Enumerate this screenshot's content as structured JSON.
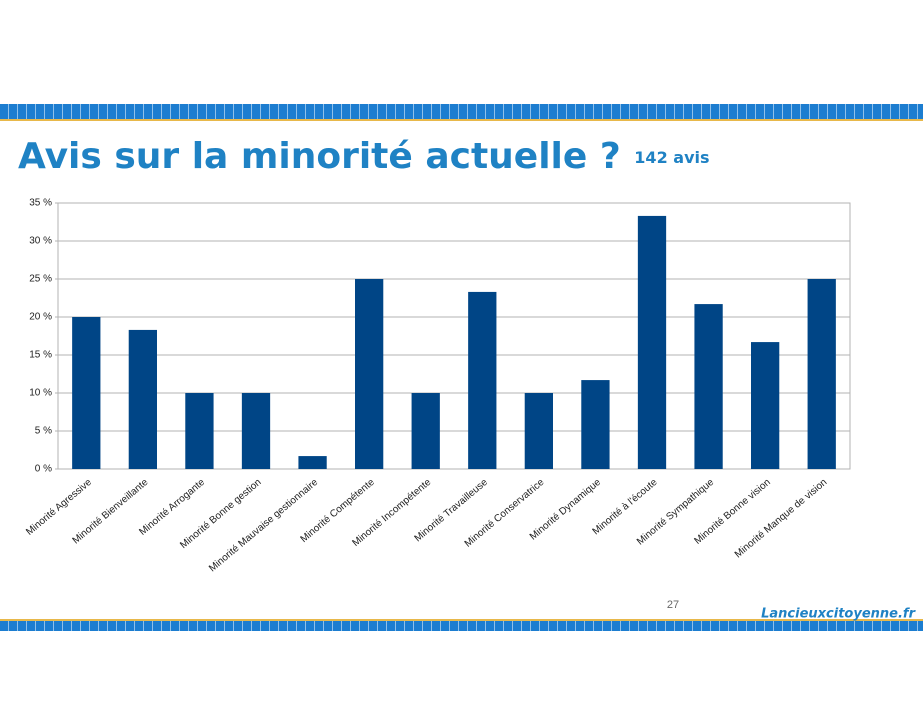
{
  "chart_data": {
    "type": "bar",
    "title": "Avis sur la minorité actuelle ?",
    "subtitle": "142 avis",
    "categories": [
      "Minorité Agressive",
      "Minorité Bienveillante",
      "Minorité Arrogante",
      "Minorité Bonne gestion",
      "Minorité Mauvaise gestionnaire",
      "Minorité Compétente",
      "Minorité Incompétente",
      "Minorité Travailleuse",
      "Minorité Conservatrice",
      "Minorité Dynamique",
      "Minorité à l'écoute",
      "Minorité Sympathique",
      "Minorité Bonne vision",
      "Minorité Manque de vision"
    ],
    "values": [
      20,
      18.3,
      10,
      10,
      1.7,
      25,
      10,
      23.3,
      10,
      11.7,
      33.3,
      21.7,
      16.7,
      25
    ],
    "color": "#004586",
    "ylim": [
      0,
      35
    ],
    "yticks": [
      {
        "value": 0,
        "label": "0 %"
      },
      {
        "value": 5,
        "label": "5 %"
      },
      {
        "value": 10,
        "label": "10 %"
      },
      {
        "value": 15,
        "label": "15 %"
      },
      {
        "value": 20,
        "label": "20 %"
      },
      {
        "value": 25,
        "label": "25 %"
      },
      {
        "value": 30,
        "label": "30 %"
      },
      {
        "value": 35,
        "label": "35 %"
      }
    ],
    "grid": true
  },
  "page_number": "27",
  "footer": "Lancieuxcitoyenne.fr"
}
